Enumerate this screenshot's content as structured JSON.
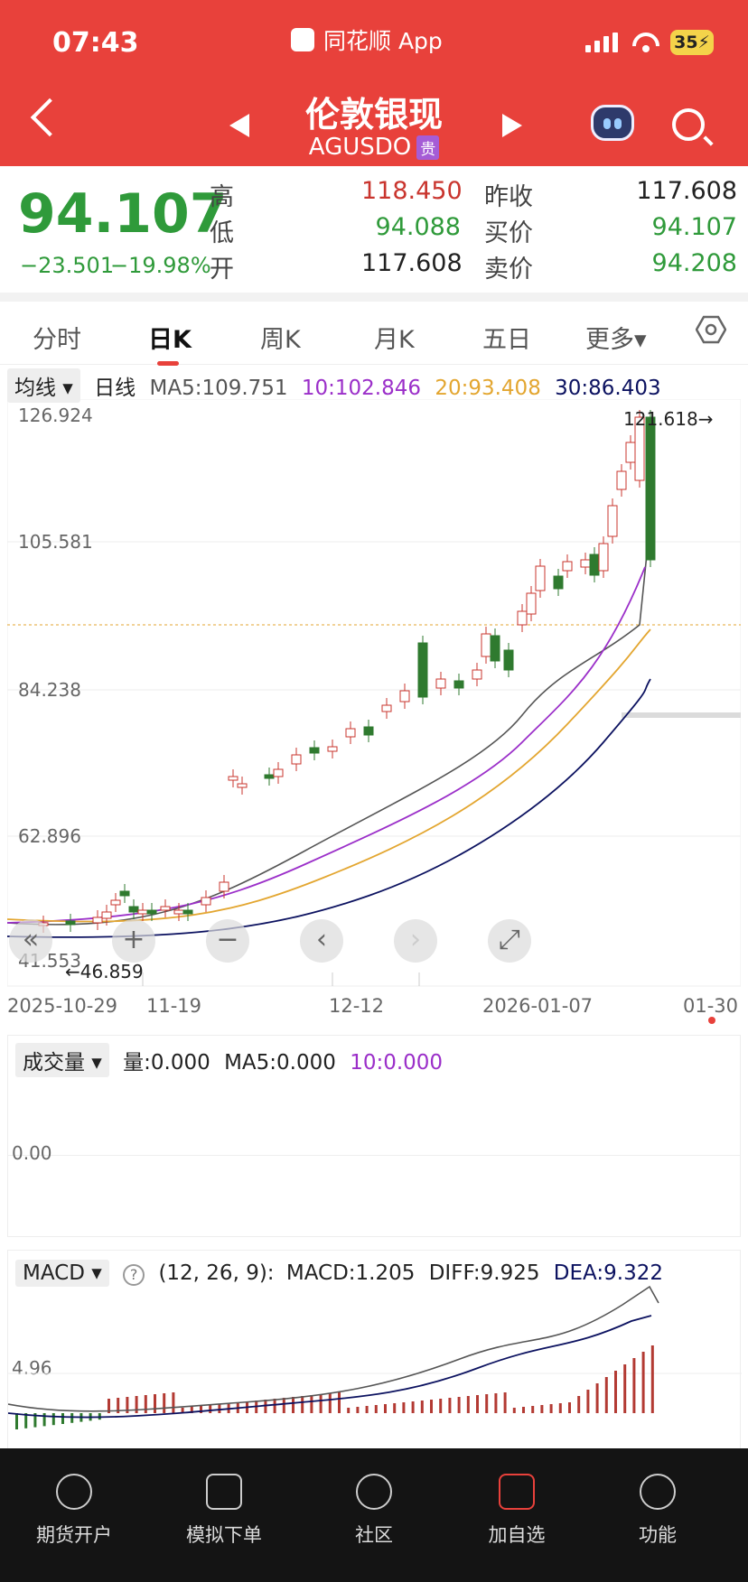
{
  "status": {
    "time": "07:43",
    "app": "同花顺 App",
    "battery": "35⚡"
  },
  "header": {
    "title": "伦敦银现",
    "code": "AGUSDO",
    "tag": "贵"
  },
  "quote": {
    "price": "94.107",
    "change": "−23.501",
    "change_pct": "−19.98%",
    "high_label": "高",
    "high": "118.450",
    "low_label": "低",
    "low": "94.088",
    "open_label": "开",
    "open": "117.608",
    "prev_close_label": "昨收",
    "prev_close": "117.608",
    "bid_label": "买价",
    "bid": "94.107",
    "ask_label": "卖价",
    "ask": "94.208"
  },
  "tabs": [
    "分时",
    "日K",
    "周K",
    "月K",
    "五日",
    "更多▾"
  ],
  "ma": {
    "mode": "均线 ▾",
    "period": "日线",
    "ma5": "MA5:109.751",
    "ma10": "10:102.846",
    "ma20": "20:93.408",
    "ma30": "30:86.403"
  },
  "chart": {
    "y_ticks": [
      "126.924",
      "105.581",
      "84.238",
      "62.896",
      "41.553"
    ],
    "max_note": "121.618→",
    "min_note": "←46.859",
    "dates": [
      "2025-10-29",
      "11-19",
      "12-12",
      "2026-01-07",
      "01-30"
    ],
    "buttons": [
      "«",
      "+",
      "−",
      "‹",
      "›",
      "⤢"
    ]
  },
  "volume": {
    "label": "成交量 ▾",
    "v": "量:0.000",
    "ma5": "MA5:0.000",
    "ma10": "10:0.000",
    "tick": "0.00"
  },
  "macd": {
    "label": "MACD ▾",
    "help": "?",
    "params": "(12, 26, 9):",
    "macd": "MACD:1.205",
    "diff": "DIFF:9.925",
    "dea": "DEA:9.322",
    "tick": "4.96"
  },
  "bottom_nav": [
    "期货开户",
    "模拟下单",
    "社区",
    "加自选",
    "功能"
  ],
  "colors": {
    "brand": "#e8413b",
    "up": "#c9352e",
    "down": "#2f7a2f",
    "ma5": "#555555",
    "ma10": "#9b2fc9",
    "ma20": "#e3a630",
    "ma30": "#0c1260"
  }
}
